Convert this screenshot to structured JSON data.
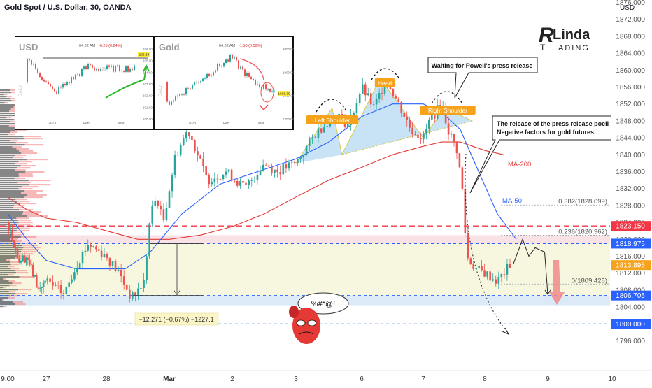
{
  "header": {
    "title": "Gold Spot / U.S. Dollar, 30, OANDA",
    "currency": "USD"
  },
  "logo": {
    "text_top": "Linda",
    "text_bottom": "TRADING"
  },
  "chart_data": {
    "type": "line",
    "title": "Gold Spot / U.S. Dollar, 30, OANDA",
    "ylim": [
      1793,
      1880
    ],
    "y_ticks": [
      1796,
      1800,
      1804,
      1808,
      1812,
      1816,
      1820,
      1824,
      1828,
      1832,
      1836,
      1840,
      1844,
      1848,
      1852,
      1856,
      1860,
      1864,
      1868,
      1872,
      1876
    ],
    "x_labels": [
      {
        "t": 0,
        "label": "9:00"
      },
      {
        "t": 1,
        "label": "27"
      },
      {
        "t": 2,
        "label": "28"
      },
      {
        "t": 3,
        "label": "Mar"
      },
      {
        "t": 4,
        "label": "2"
      },
      {
        "t": 5,
        "label": "3"
      },
      {
        "t": 6,
        "label": "6"
      },
      {
        "t": 7,
        "label": "7"
      },
      {
        "t": 8,
        "label": "8"
      },
      {
        "t": 9,
        "label": "9"
      },
      {
        "t": 10,
        "label": "10"
      }
    ],
    "price_series": {
      "name": "",
      "points": [
        [
          0,
          1824
        ],
        [
          0.3,
          1815
        ],
        [
          0.5,
          1816
        ],
        [
          0.8,
          1808
        ],
        [
          1.0,
          1810
        ],
        [
          1.3,
          1807
        ],
        [
          1.5,
          1814
        ],
        [
          1.7,
          1819
        ],
        [
          2.0,
          1816
        ],
        [
          2.2,
          1812
        ],
        [
          2.4,
          1806
        ],
        [
          2.6,
          1810
        ],
        [
          2.7,
          1826
        ],
        [
          2.8,
          1830
        ],
        [
          2.9,
          1824
        ],
        [
          3.1,
          1840
        ],
        [
          3.3,
          1846
        ],
        [
          3.6,
          1834
        ],
        [
          3.9,
          1836
        ],
        [
          4.2,
          1832
        ],
        [
          4.5,
          1838
        ],
        [
          4.7,
          1836
        ],
        [
          5.0,
          1838
        ],
        [
          5.3,
          1845
        ],
        [
          5.6,
          1850
        ],
        [
          5.8,
          1847
        ],
        [
          6.0,
          1856
        ],
        [
          6.2,
          1851
        ],
        [
          6.4,
          1858
        ],
        [
          6.6,
          1852
        ],
        [
          6.8,
          1846
        ],
        [
          7.0,
          1844
        ],
        [
          7.1,
          1848
        ],
        [
          7.3,
          1852
        ],
        [
          7.4,
          1846
        ],
        [
          7.55,
          1841
        ],
        [
          7.65,
          1830
        ],
        [
          7.7,
          1816
        ],
        [
          7.85,
          1813
        ],
        [
          8.0,
          1812
        ],
        [
          8.2,
          1810
        ],
        [
          8.4,
          1814
        ]
      ]
    },
    "ma50": {
      "name": "MA-50",
      "points": [
        [
          0,
          1826
        ],
        [
          0.5,
          1820
        ],
        [
          1.0,
          1815
        ],
        [
          1.5,
          1813
        ],
        [
          2.0,
          1813
        ],
        [
          2.3,
          1813
        ],
        [
          2.7,
          1817
        ],
        [
          3.2,
          1826
        ],
        [
          3.8,
          1833
        ],
        [
          4.4,
          1836
        ],
        [
          5.0,
          1839
        ],
        [
          5.5,
          1843
        ],
        [
          6.0,
          1849
        ],
        [
          6.5,
          1852
        ],
        [
          7.0,
          1852
        ],
        [
          7.3,
          1850
        ],
        [
          7.6,
          1846
        ],
        [
          7.9,
          1836
        ],
        [
          8.2,
          1826
        ],
        [
          8.5,
          1820
        ]
      ]
    },
    "ma200": {
      "name": "MA-200",
      "points": [
        [
          0,
          1830
        ],
        [
          0.5,
          1827
        ],
        [
          1.0,
          1825
        ],
        [
          1.5,
          1824
        ],
        [
          2.0,
          1822
        ],
        [
          2.5,
          1820
        ],
        [
          3.0,
          1820
        ],
        [
          3.5,
          1821
        ],
        [
          4.0,
          1823
        ],
        [
          4.5,
          1826
        ],
        [
          5.0,
          1830
        ],
        [
          5.5,
          1834
        ],
        [
          6.0,
          1837
        ],
        [
          6.5,
          1840
        ],
        [
          7.0,
          1842
        ],
        [
          7.3,
          1843
        ],
        [
          7.6,
          1843
        ],
        [
          8.0,
          1841
        ],
        [
          8.3,
          1840
        ]
      ]
    },
    "projection": {
      "name": "",
      "points": [
        [
          8.45,
          1814
        ],
        [
          8.6,
          1820
        ],
        [
          8.7,
          1816
        ],
        [
          8.8,
          1818
        ],
        [
          8.95,
          1817
        ],
        [
          9.0,
          1807
        ]
      ]
    },
    "fib_levels": [
      {
        "label": "0.382(1828.099)",
        "value": 1828.1
      },
      {
        "label": "0.236(1820.962)",
        "value": 1820.96
      },
      {
        "label": "0(1809.425)",
        "value": 1809.42
      }
    ],
    "price_tags": [
      {
        "value": 1823.15,
        "label": "1823.150",
        "color": "#f23645"
      },
      {
        "value": 1818.975,
        "label": "1818.975",
        "color": "#2962ff"
      },
      {
        "value": 1813.895,
        "label": "1813.895",
        "color": "#f7a21b"
      },
      {
        "value": 1806.705,
        "label": "1806.705",
        "color": "#2962ff"
      },
      {
        "value": 1800.0,
        "label": "1800.000",
        "color": "#2962ff"
      }
    ],
    "horizontal_lines": [
      {
        "value": 1823.15,
        "color": "#f23645"
      },
      {
        "value": 1818.975,
        "color": "#2962ff"
      },
      {
        "value": 1806.705,
        "color": "#2962ff"
      },
      {
        "value": 1800.0,
        "color": "#2962ff"
      }
    ],
    "annotations": {
      "left_shoulder": "Left Shoulder",
      "head": "Head",
      "right_shoulder": "Right Shoulder",
      "powell_callout": "Waiting for Powell's press release",
      "release_line1": "The release of the press release poell",
      "release_line2": "Negative factors for gold futures",
      "ma200_label": "MA-200",
      "ma50_label": "MA-50",
      "measure_label": "−12.271 (−0.67%) −1227.1",
      "speech": "%#*@!"
    },
    "colors": {
      "up": "#26a69a",
      "down": "#ef5350",
      "ma50": "#2962ff",
      "ma200": "#e53935",
      "pattern_fill": "#a9d4ef",
      "pattern_line": "#d4c84a",
      "orange_label": "#f7a21b"
    }
  },
  "inset": {
    "usd": {
      "symbol": "USD",
      "time": "04:32 AM",
      "change": "-0.25 (0.24%)",
      "tag": "105.34",
      "y_ticks": [
        "106.00",
        "105.00",
        "104.00",
        "103.00",
        "102.00",
        "101.00",
        "100.00"
      ],
      "x_ticks": [
        "2023",
        "Feb",
        "Mar"
      ],
      "side": "DAILY"
    },
    "gold": {
      "symbol": "Gold",
      "time": "04:32 AM",
      "change": "-1.50 (0.08%)",
      "tag": "1818.30",
      "y_ticks": [
        "2000.00",
        "1900.00",
        "1800.00",
        "1700.00"
      ],
      "x_ticks": [
        "2023",
        "Feb",
        "Mar"
      ],
      "side": "DAILY"
    }
  }
}
